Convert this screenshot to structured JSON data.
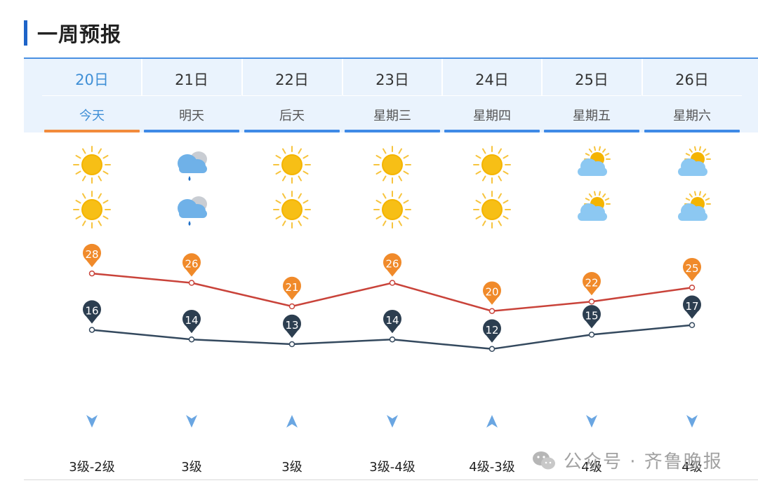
{
  "section": {
    "title": "一周预报"
  },
  "colors": {
    "accent": "#1e64c8",
    "today_bar": "#f28b3c",
    "day_bar": "#3f8ae6",
    "high_line": "#c9433a",
    "high_pin": "#f08a2a",
    "low_line": "#34495e",
    "low_pin": "#2c3e50"
  },
  "days": [
    {
      "date": "20日",
      "label": "今天",
      "day_icon": "sunny-icon",
      "night_icon": "sunny-icon",
      "high": 28,
      "low": 16,
      "wind_dir": "down-arrow-icon",
      "wind_level": "3级-2级"
    },
    {
      "date": "21日",
      "label": "明天",
      "day_icon": "cloud-rain-icon",
      "night_icon": "cloud-rain-icon",
      "high": 26,
      "low": 14,
      "wind_dir": "down-arrow-icon",
      "wind_level": "3级"
    },
    {
      "date": "22日",
      "label": "后天",
      "day_icon": "sunny-icon",
      "night_icon": "sunny-icon",
      "high": 21,
      "low": 13,
      "wind_dir": "up-arrow-icon",
      "wind_level": "3级"
    },
    {
      "date": "23日",
      "label": "星期三",
      "day_icon": "sunny-icon",
      "night_icon": "sunny-icon",
      "high": 26,
      "low": 14,
      "wind_dir": "down-arrow-icon",
      "wind_level": "3级-4级"
    },
    {
      "date": "24日",
      "label": "星期四",
      "day_icon": "sunny-icon",
      "night_icon": "sunny-icon",
      "high": 20,
      "low": 12,
      "wind_dir": "up-arrow-icon",
      "wind_level": "4级-3级"
    },
    {
      "date": "25日",
      "label": "星期五",
      "day_icon": "partly-cloudy-icon",
      "night_icon": "partly-cloudy-icon",
      "high": 22,
      "low": 15,
      "wind_dir": "down-arrow-icon",
      "wind_level": "4级"
    },
    {
      "date": "26日",
      "label": "星期六",
      "day_icon": "partly-cloudy-icon",
      "night_icon": "partly-cloudy-icon",
      "high": 25,
      "low": 17,
      "wind_dir": "down-arrow-icon",
      "wind_level": "4级"
    }
  ],
  "watermark": {
    "text": "公众号 · 齐鲁晚报"
  }
}
